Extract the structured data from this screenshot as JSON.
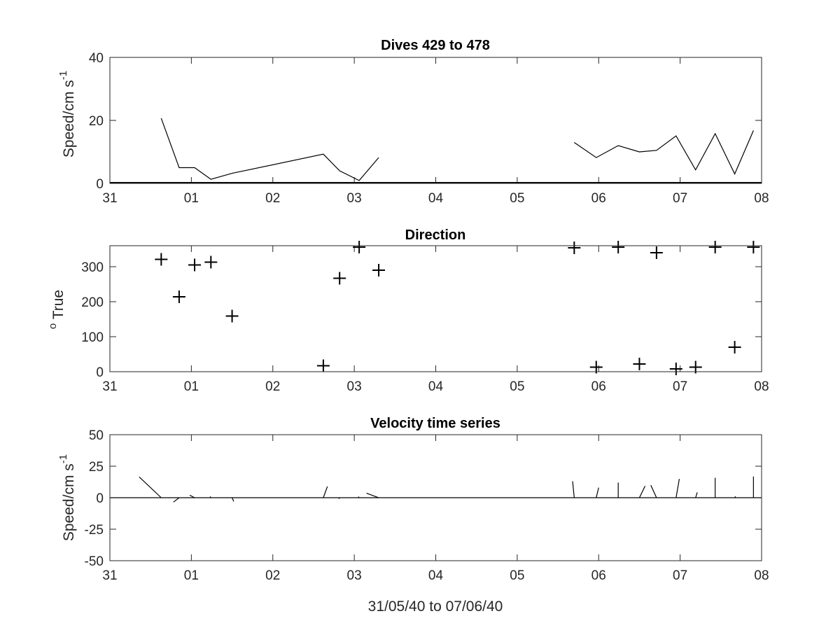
{
  "chart_data": [
    {
      "type": "line",
      "title": "Dives 429 to 478",
      "ylabel_main": "Speed/cm s",
      "ylabel_sup": "-1",
      "xlabel": "",
      "ylim": [
        0,
        40
      ],
      "yticks": [
        0,
        20,
        40
      ],
      "xlim": [
        31,
        39
      ],
      "xticks": [
        "31",
        "01",
        "02",
        "03",
        "04",
        "05",
        "06",
        "07",
        "08"
      ],
      "grid": false,
      "segments": [
        {
          "x": [
            31.63,
            31.85,
            32.04,
            32.24,
            32.5,
            33.62,
            33.82,
            34.06,
            34.3
          ],
          "y": [
            20.7,
            5.0,
            5.0,
            1.3,
            3.2,
            9.3,
            4.0,
            0.9,
            8.2
          ]
        },
        {
          "x": [
            36.7,
            36.97,
            37.24,
            37.5,
            37.71,
            37.95,
            38.19,
            38.43,
            38.67,
            38.9
          ],
          "y": [
            13.0,
            8.2,
            12.0,
            10.0,
            10.5,
            15.1,
            4.3,
            15.8,
            3.0,
            16.8
          ]
        }
      ]
    },
    {
      "type": "scatter",
      "title": "Direction",
      "ylabel_sup": "o",
      "ylabel_main": " True",
      "xlabel": "",
      "ylim": [
        0,
        360
      ],
      "yticks": [
        0,
        100,
        200,
        300
      ],
      "xlim": [
        31,
        39
      ],
      "xticks": [
        "31",
        "01",
        "02",
        "03",
        "04",
        "05",
        "06",
        "07",
        "08"
      ],
      "grid": false,
      "marker": "+",
      "x": [
        31.63,
        31.85,
        32.04,
        32.24,
        32.5,
        33.62,
        33.82,
        34.06,
        34.3,
        36.7,
        36.97,
        37.24,
        37.5,
        37.71,
        37.95,
        38.19,
        38.43,
        38.67,
        38.9
      ],
      "y": [
        321,
        214,
        305,
        313,
        159,
        17,
        267,
        356,
        290,
        354,
        13,
        356,
        22,
        340,
        8,
        13,
        356,
        70,
        356
      ]
    },
    {
      "type": "line",
      "subtype": "stick",
      "title": "Velocity time series",
      "ylabel_main": "Speed/cm s",
      "ylabel_sup": "-1",
      "xlabel": "31/05/40 to 07/06/40",
      "ylim": [
        -50,
        50
      ],
      "yticks": [
        -50,
        -25,
        0,
        25,
        50
      ],
      "xlim": [
        31,
        39
      ],
      "xticks": [
        "31",
        "01",
        "02",
        "03",
        "04",
        "05",
        "06",
        "07",
        "08"
      ],
      "grid": false,
      "zero_line": true,
      "sticks": [
        {
          "x": 31.63,
          "dx": -0.27,
          "dy": 16.5
        },
        {
          "x": 31.85,
          "dx": -0.07,
          "dy": -3.5
        },
        {
          "x": 32.04,
          "dx": -0.06,
          "dy": 2.0
        },
        {
          "x": 32.24,
          "dx": -0.01,
          "dy": 0.9
        },
        {
          "x": 32.5,
          "dx": 0.02,
          "dy": -3.0
        },
        {
          "x": 33.62,
          "dx": 0.05,
          "dy": 8.9
        },
        {
          "x": 33.82,
          "dx": -0.01,
          "dy": -0.8
        },
        {
          "x": 34.06,
          "dx": -0.01,
          "dy": 0.8
        },
        {
          "x": 34.3,
          "dx": -0.15,
          "dy": 3.6
        },
        {
          "x": 36.7,
          "dx": -0.02,
          "dy": 13.0
        },
        {
          "x": 36.97,
          "dx": 0.03,
          "dy": 8.0
        },
        {
          "x": 37.24,
          "dx": 0.0,
          "dy": 12.0
        },
        {
          "x": 37.5,
          "dx": 0.07,
          "dy": 9.3
        },
        {
          "x": 37.71,
          "dx": -0.07,
          "dy": 9.9
        },
        {
          "x": 37.95,
          "dx": 0.04,
          "dy": 14.9
        },
        {
          "x": 38.19,
          "dx": 0.02,
          "dy": 4.2
        },
        {
          "x": 38.43,
          "dx": 0.0,
          "dy": 15.8
        },
        {
          "x": 38.67,
          "dx": 0.01,
          "dy": 1.0
        },
        {
          "x": 38.9,
          "dx": 0.0,
          "dy": 16.8
        }
      ]
    }
  ]
}
